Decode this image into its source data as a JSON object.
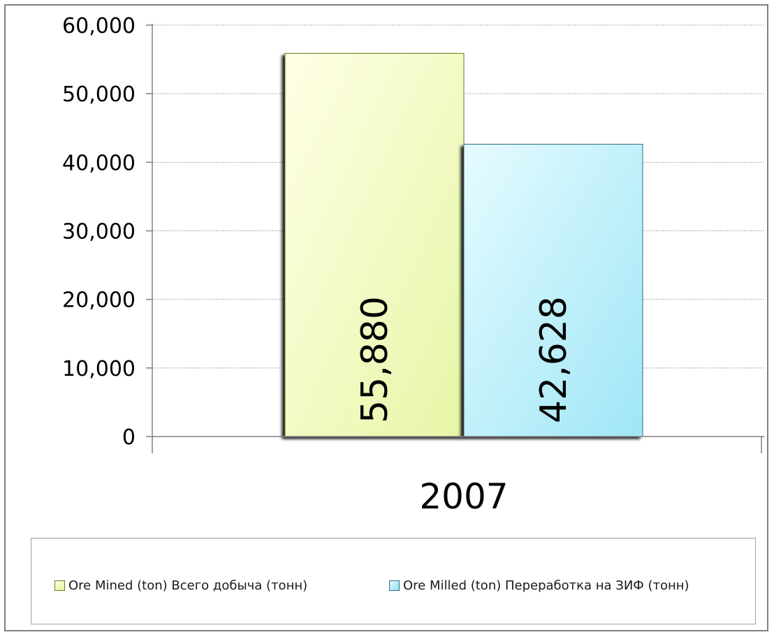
{
  "chart_data": {
    "type": "bar",
    "categories": [
      "2007"
    ],
    "series": [
      {
        "name": "Ore Mined (ton) Всего добыча  (тонн)",
        "values": [
          55880
        ],
        "label": "55,880",
        "color": "#f2fbc4",
        "edge": "#6f7a1e"
      },
      {
        "name": "Ore Milled (ton) Переработка на ЗИФ (тонн)",
        "values": [
          42628
        ],
        "label": "42,628",
        "color": "#b5effa",
        "edge": "#2f6f88"
      }
    ],
    "ylim": [
      0,
      60000
    ],
    "yticks": [
      "0",
      "10,000",
      "20,000",
      "30,000",
      "40,000",
      "50,000",
      "60,000"
    ],
    "ytick_values": [
      0,
      10000,
      20000,
      30000,
      40000,
      50000,
      60000
    ],
    "grid": true,
    "legend_position": "bottom",
    "title": "",
    "xlabel": "",
    "ylabel": ""
  }
}
